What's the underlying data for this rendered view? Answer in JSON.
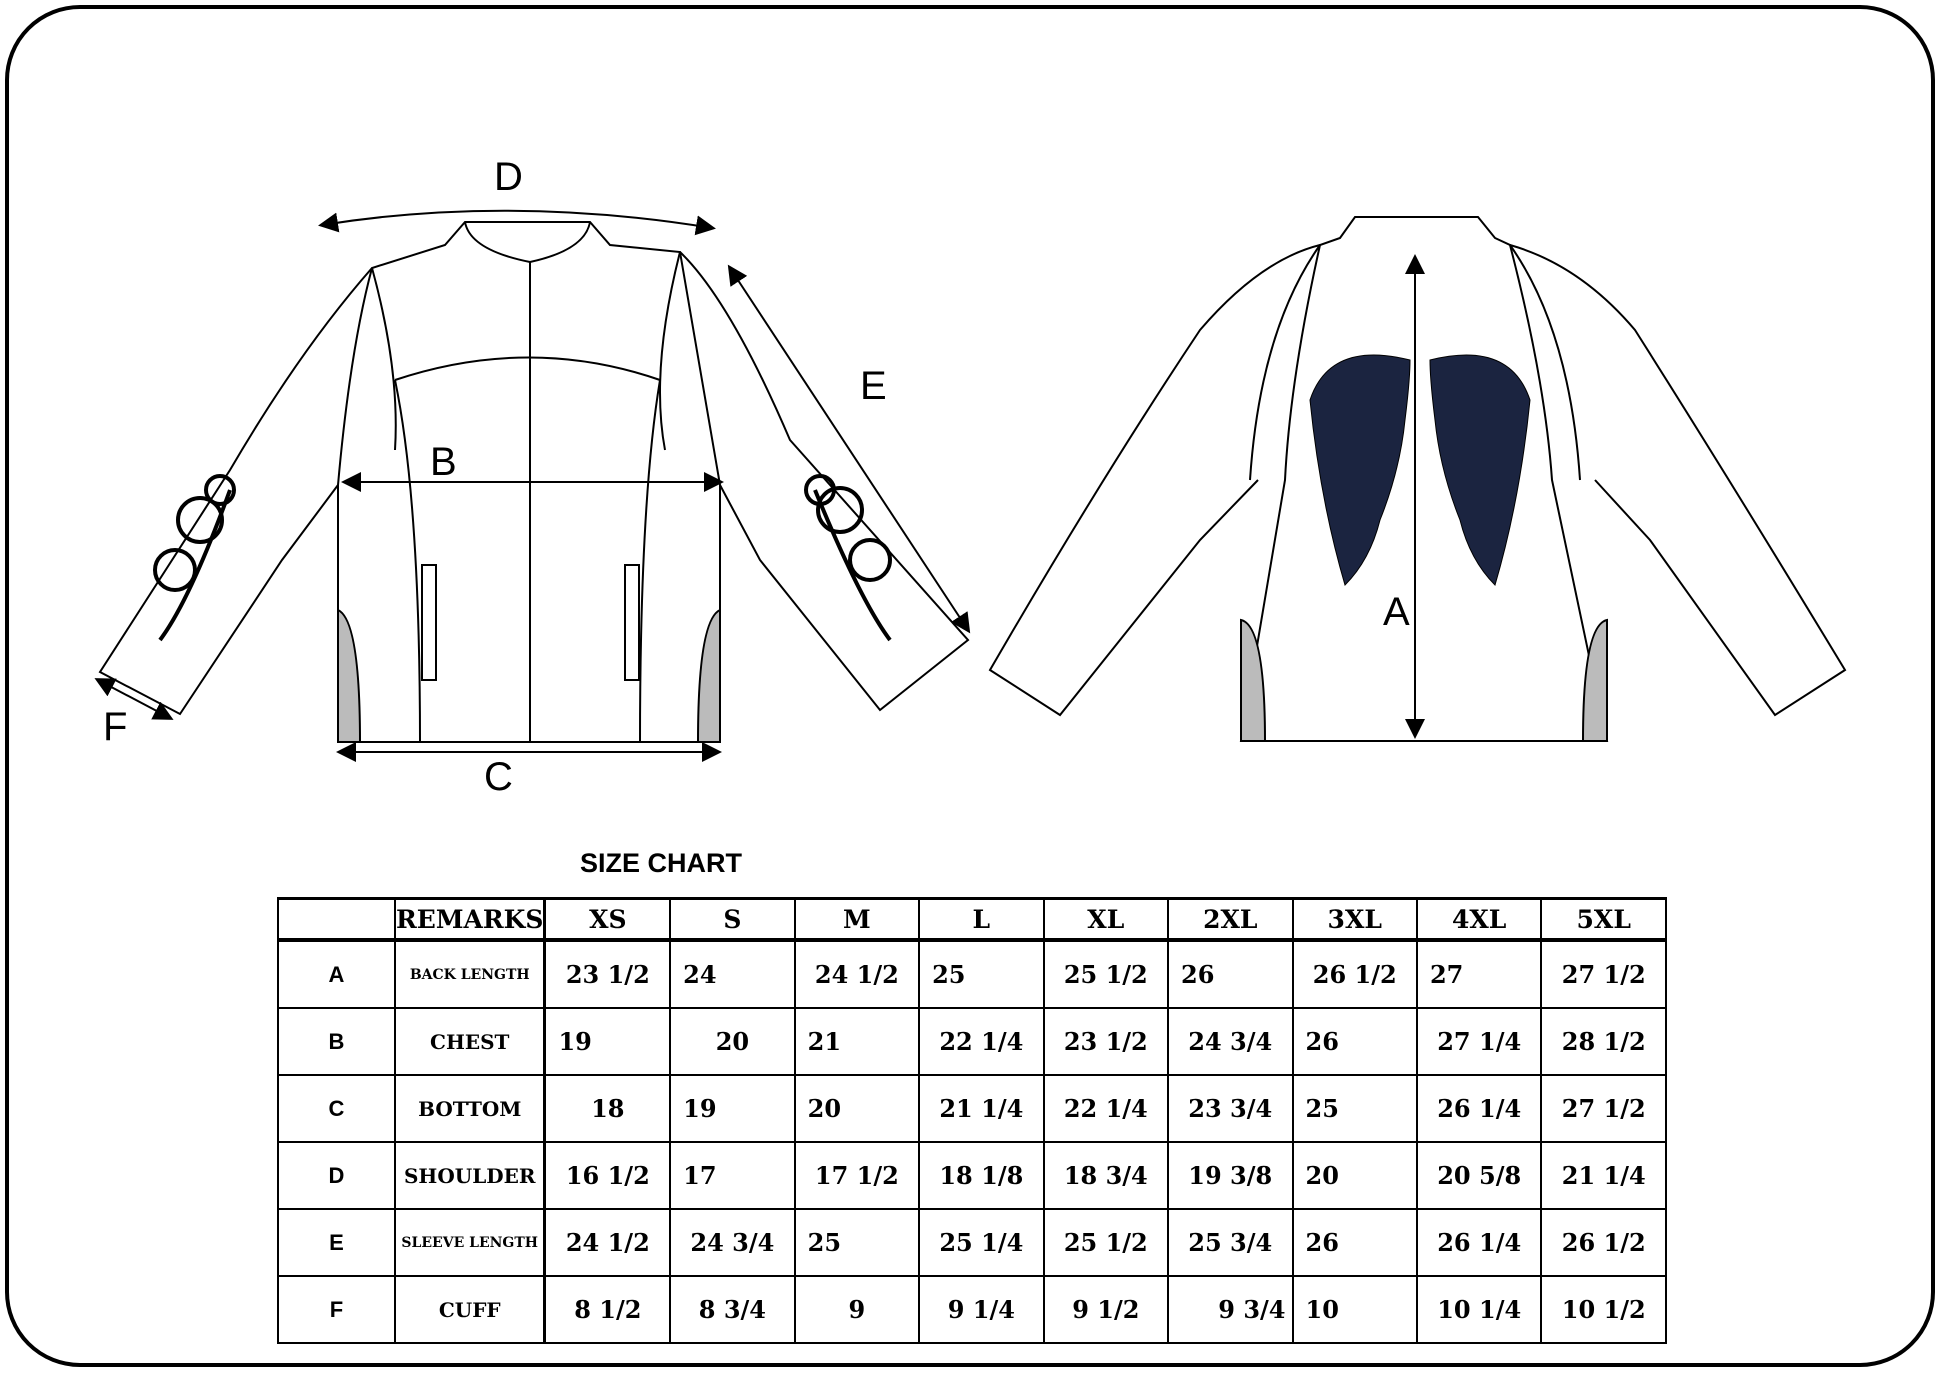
{
  "diagram_labels": {
    "A": "A",
    "B": "B",
    "C": "C",
    "D": "D",
    "E": "E",
    "F": "F"
  },
  "colors": {
    "wings": "#1b2440",
    "line": "#000000"
  },
  "size_chart": {
    "title": "SIZE CHART",
    "header": [
      "",
      "REMARKS",
      "XS",
      "S",
      "M",
      "L",
      "XL",
      "2XL",
      "3XL",
      "4XL",
      "5XL"
    ],
    "rows": [
      {
        "key": "A",
        "remark": "BACK LENGTH",
        "values": [
          "23 1/2",
          "24",
          "24 1/2",
          "25",
          "25 1/2",
          "26",
          "26 1/2",
          "27",
          "27 1/2"
        ]
      },
      {
        "key": "B",
        "remark": "CHEST",
        "values": [
          "19",
          "20",
          "21",
          "22 1/4",
          "23 1/2",
          "24 3/4",
          "26",
          "27 1/4",
          "28 1/2"
        ]
      },
      {
        "key": "C",
        "remark": "BOTTOM",
        "values": [
          "18",
          "19",
          "20",
          "21 1/4",
          "22 1/4",
          "23 3/4",
          "25",
          "26 1/4",
          "27 1/2"
        ]
      },
      {
        "key": "D",
        "remark": "SHOULDER",
        "values": [
          "16 1/2",
          "17",
          "17 1/2",
          "18 1/8",
          "18 3/4",
          "19 3/8",
          "20",
          "20 5/8",
          "21 1/4"
        ]
      },
      {
        "key": "E",
        "remark": "SLEEVE LENGTH",
        "values": [
          "24 1/2",
          "24 3/4",
          "25",
          "25 1/4",
          "25 1/2",
          "25 3/4",
          "26",
          "26 1/4",
          "26 1/2"
        ]
      },
      {
        "key": "F",
        "remark": "CUFF",
        "values": [
          "8 1/2",
          "8 3/4",
          "9",
          "9 1/4",
          "9 1/2",
          "9 3/4",
          "10",
          "10 1/4",
          "10 1/2"
        ]
      }
    ]
  }
}
